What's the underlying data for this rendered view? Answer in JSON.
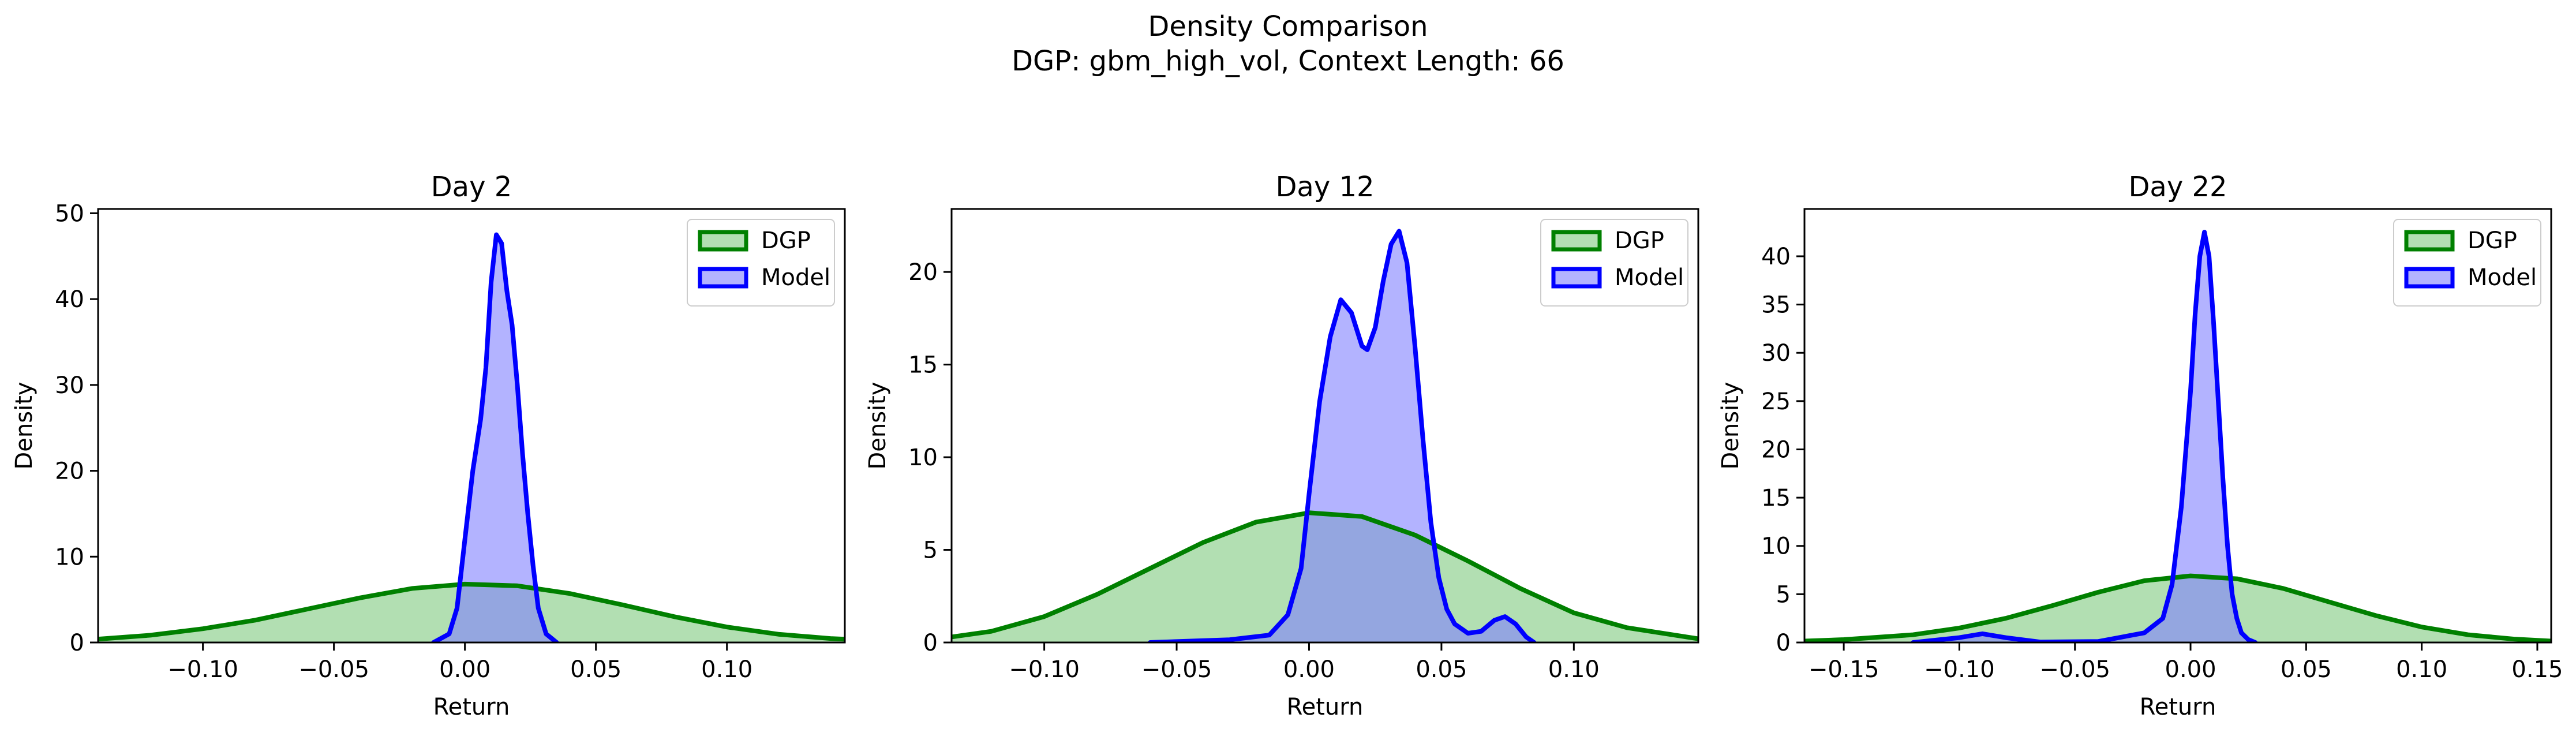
{
  "figure": {
    "title": "Density Comparison",
    "subtitle": "DGP: gbm_high_vol, Context Length: 66"
  },
  "colors": {
    "dgp_line": "#008000",
    "dgp_fill": "#7fc97f",
    "model_line": "#0000ff",
    "model_fill": "#8080ff",
    "axes": "#000000",
    "background": "#ffffff"
  },
  "chart_data": [
    {
      "type": "area",
      "title": "Day 2",
      "xlabel": "Return",
      "ylabel": "Density",
      "xlim": [
        -0.14,
        0.145
      ],
      "ylim": [
        0,
        50.5
      ],
      "xticks": [
        -0.1,
        -0.05,
        0.0,
        0.05,
        0.1
      ],
      "xtick_labels": [
        "−0.10",
        "−0.05",
        "0.00",
        "0.05",
        "0.10"
      ],
      "yticks": [
        0,
        10,
        20,
        30,
        40,
        50
      ],
      "ytick_labels": [
        "0",
        "10",
        "20",
        "30",
        "40",
        "50"
      ],
      "legend": {
        "position": "upper right",
        "entries": [
          "DGP",
          "Model"
        ]
      },
      "series": [
        {
          "name": "DGP",
          "x": [
            -0.14,
            -0.12,
            -0.1,
            -0.08,
            -0.06,
            -0.04,
            -0.02,
            0.0,
            0.02,
            0.04,
            0.06,
            0.08,
            0.1,
            0.12,
            0.14,
            0.145
          ],
          "y": [
            0.4,
            0.85,
            1.6,
            2.6,
            3.9,
            5.2,
            6.3,
            6.8,
            6.6,
            5.7,
            4.4,
            3.0,
            1.8,
            0.95,
            0.45,
            0.38
          ]
        },
        {
          "name": "Model",
          "x": [
            -0.012,
            -0.006,
            -0.003,
            0.0,
            0.003,
            0.006,
            0.008,
            0.01,
            0.012,
            0.014,
            0.016,
            0.018,
            0.02,
            0.022,
            0.024,
            0.026,
            0.028,
            0.031,
            0.035
          ],
          "y": [
            0,
            1.0,
            4.0,
            12.0,
            20.0,
            26.0,
            32.0,
            42.0,
            47.5,
            46.5,
            41.0,
            37.0,
            30.0,
            22.0,
            15.0,
            9.0,
            4.0,
            1.0,
            0
          ]
        }
      ]
    },
    {
      "type": "area",
      "title": "Day 12",
      "xlabel": "Return",
      "ylabel": "Density",
      "xlim": [
        -0.135,
        0.147
      ],
      "ylim": [
        0,
        23.4
      ],
      "xticks": [
        -0.1,
        -0.05,
        0.0,
        0.05,
        0.1
      ],
      "xtick_labels": [
        "−0.10",
        "−0.05",
        "0.00",
        "0.05",
        "0.10"
      ],
      "yticks": [
        0,
        5,
        10,
        15,
        20
      ],
      "ytick_labels": [
        "0",
        "5",
        "10",
        "15",
        "20"
      ],
      "legend": {
        "position": "upper right",
        "entries": [
          "DGP",
          "Model"
        ]
      },
      "series": [
        {
          "name": "DGP",
          "x": [
            -0.135,
            -0.12,
            -0.1,
            -0.08,
            -0.06,
            -0.04,
            -0.02,
            0.0,
            0.02,
            0.04,
            0.06,
            0.08,
            0.1,
            0.12,
            0.147
          ],
          "y": [
            0.3,
            0.6,
            1.4,
            2.6,
            4.0,
            5.4,
            6.5,
            7.0,
            6.8,
            5.8,
            4.4,
            2.9,
            1.6,
            0.8,
            0.2
          ]
        },
        {
          "name": "Model",
          "x": [
            -0.06,
            -0.03,
            -0.015,
            -0.008,
            -0.003,
            0.0,
            0.004,
            0.008,
            0.012,
            0.016,
            0.02,
            0.022,
            0.025,
            0.028,
            0.031,
            0.034,
            0.037,
            0.04,
            0.043,
            0.046,
            0.049,
            0.052,
            0.055,
            0.06,
            0.065,
            0.07,
            0.074,
            0.078,
            0.082,
            0.085
          ],
          "y": [
            0,
            0.15,
            0.4,
            1.5,
            4.0,
            8.0,
            13.0,
            16.5,
            18.5,
            17.8,
            16.0,
            15.8,
            17.0,
            19.5,
            21.5,
            22.2,
            20.5,
            16.0,
            11.0,
            6.5,
            3.5,
            1.8,
            1.0,
            0.5,
            0.6,
            1.2,
            1.4,
            1.0,
            0.3,
            0
          ]
        }
      ]
    },
    {
      "type": "area",
      "title": "Day 22",
      "xlabel": "Return",
      "ylabel": "Density",
      "xlim": [
        -0.167,
        0.156
      ],
      "ylim": [
        0,
        44.9
      ],
      "xticks": [
        -0.15,
        -0.1,
        -0.05,
        0.0,
        0.05,
        0.1,
        0.15
      ],
      "xtick_labels": [
        "−0.15",
        "−0.10",
        "−0.05",
        "0.00",
        "0.05",
        "0.10",
        "0.15"
      ],
      "yticks": [
        0,
        5,
        10,
        15,
        20,
        25,
        30,
        35,
        40
      ],
      "ytick_labels": [
        "0",
        "5",
        "10",
        "15",
        "20",
        "25",
        "30",
        "35",
        "40"
      ],
      "legend": {
        "position": "upper right",
        "entries": [
          "DGP",
          "Model"
        ]
      },
      "series": [
        {
          "name": "DGP",
          "x": [
            -0.167,
            -0.15,
            -0.12,
            -0.1,
            -0.08,
            -0.06,
            -0.04,
            -0.02,
            0.0,
            0.02,
            0.04,
            0.06,
            0.08,
            0.1,
            0.12,
            0.14,
            0.156
          ],
          "y": [
            0.15,
            0.3,
            0.8,
            1.5,
            2.5,
            3.8,
            5.2,
            6.4,
            6.9,
            6.6,
            5.6,
            4.2,
            2.8,
            1.6,
            0.8,
            0.35,
            0.15
          ]
        },
        {
          "name": "Model",
          "x": [
            -0.12,
            -0.1,
            -0.09,
            -0.08,
            -0.065,
            -0.04,
            -0.02,
            -0.012,
            -0.008,
            -0.004,
            0.0,
            0.002,
            0.004,
            0.006,
            0.008,
            0.01,
            0.012,
            0.014,
            0.016,
            0.018,
            0.02,
            0.022,
            0.025,
            0.028
          ],
          "y": [
            0,
            0.5,
            0.9,
            0.5,
            0.05,
            0.1,
            1.0,
            2.5,
            6.0,
            14.0,
            26.0,
            34.0,
            40.0,
            42.5,
            40.0,
            33.0,
            25.0,
            17.0,
            10.0,
            5.0,
            2.5,
            1.0,
            0.3,
            0
          ]
        }
      ]
    }
  ]
}
